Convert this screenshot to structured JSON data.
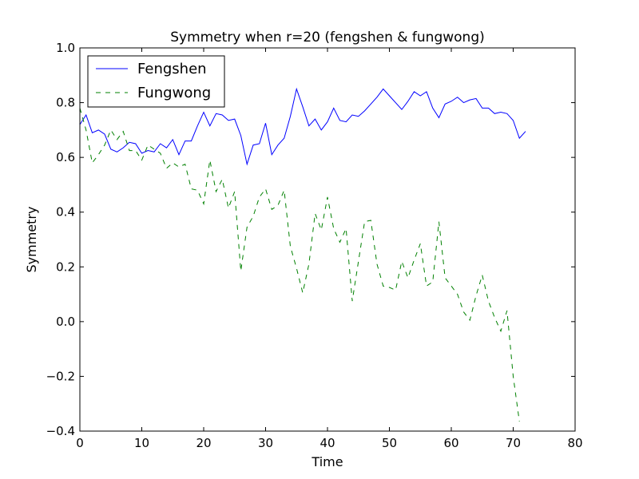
{
  "chart_data": {
    "type": "line",
    "title": "Symmetry when r=20 (fengshen & fungwong)",
    "xlabel": "Time",
    "ylabel": "Symmetry",
    "xlim": [
      0,
      80
    ],
    "ylim": [
      -0.4,
      1.0
    ],
    "xticks": [
      "0",
      "10",
      "20",
      "30",
      "40",
      "50",
      "60",
      "70",
      "80"
    ],
    "yticks": [
      "−0.4",
      "−0.2",
      "0.0",
      "0.2",
      "0.4",
      "0.6",
      "0.8",
      "1.0"
    ],
    "grid": false,
    "legend_position": "top-left",
    "series": [
      {
        "name": "Fengshen",
        "color": "#0000ff",
        "line_style": "solid",
        "x": [
          0,
          1,
          2,
          3,
          4,
          5,
          6,
          7,
          8,
          9,
          10,
          11,
          12,
          13,
          14,
          15,
          16,
          17,
          18,
          19,
          20,
          21,
          22,
          23,
          24,
          25,
          26,
          27,
          28,
          29,
          30,
          31,
          32,
          33,
          34,
          35,
          36,
          37,
          38,
          39,
          40,
          41,
          42,
          43,
          44,
          45,
          46,
          47,
          48,
          49,
          50,
          51,
          52,
          53,
          54,
          55,
          56,
          57,
          58,
          59,
          60,
          61,
          62,
          63,
          64,
          65,
          66,
          67,
          68,
          69,
          70,
          71,
          72
        ],
        "y": [
          0.72,
          0.755,
          0.69,
          0.7,
          0.685,
          0.63,
          0.62,
          0.635,
          0.655,
          0.65,
          0.615,
          0.625,
          0.62,
          0.65,
          0.635,
          0.665,
          0.61,
          0.66,
          0.66,
          0.715,
          0.765,
          0.715,
          0.76,
          0.755,
          0.735,
          0.74,
          0.68,
          0.575,
          0.645,
          0.65,
          0.725,
          0.61,
          0.645,
          0.67,
          0.75,
          0.85,
          0.785,
          0.715,
          0.74,
          0.7,
          0.73,
          0.78,
          0.735,
          0.73,
          0.755,
          0.75,
          0.77,
          0.795,
          0.82,
          0.85,
          0.825,
          0.8,
          0.775,
          0.805,
          0.84,
          0.825,
          0.84,
          0.78,
          0.745,
          0.795,
          0.805,
          0.82,
          0.8,
          0.81,
          0.815,
          0.78,
          0.78,
          0.76,
          0.765,
          0.76,
          0.735,
          0.67,
          0.695
        ]
      },
      {
        "name": "Fungwong",
        "color": "#008000",
        "line_style": "dashed",
        "x": [
          0,
          1,
          2,
          3,
          4,
          5,
          6,
          7,
          8,
          9,
          10,
          11,
          12,
          13,
          14,
          15,
          16,
          17,
          18,
          19,
          20,
          21,
          22,
          23,
          24,
          25,
          26,
          27,
          28,
          29,
          30,
          31,
          32,
          33,
          34,
          35,
          36,
          37,
          38,
          39,
          40,
          41,
          42,
          43,
          44,
          45,
          46,
          47,
          48,
          49,
          50,
          51,
          52,
          53,
          54,
          55,
          56,
          57,
          58,
          59,
          60,
          61,
          62,
          63,
          64,
          65,
          66,
          67,
          68,
          69,
          70,
          71
        ],
        "y": [
          0.78,
          0.7,
          0.58,
          0.61,
          0.645,
          0.7,
          0.665,
          0.695,
          0.625,
          0.625,
          0.59,
          0.645,
          0.63,
          0.615,
          0.56,
          0.58,
          0.565,
          0.575,
          0.485,
          0.48,
          0.43,
          0.59,
          0.475,
          0.52,
          0.415,
          0.475,
          0.185,
          0.345,
          0.385,
          0.455,
          0.485,
          0.41,
          0.425,
          0.48,
          0.275,
          0.195,
          0.105,
          0.21,
          0.395,
          0.335,
          0.455,
          0.34,
          0.29,
          0.34,
          0.075,
          0.22,
          0.365,
          0.37,
          0.21,
          0.13,
          0.125,
          0.115,
          0.22,
          0.16,
          0.225,
          0.285,
          0.13,
          0.145,
          0.365,
          0.16,
          0.13,
          0.1,
          0.035,
          0.005,
          0.095,
          0.17,
          0.075,
          0.015,
          -0.035,
          0.04,
          -0.2,
          -0.365
        ]
      }
    ]
  }
}
